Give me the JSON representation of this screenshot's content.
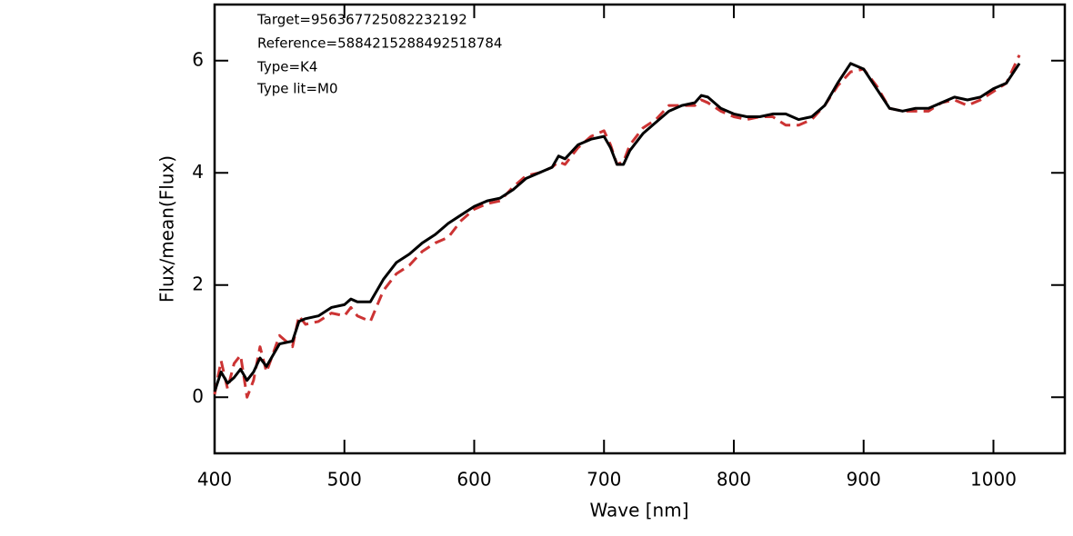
{
  "chart_data": {
    "type": "line",
    "x_label": "Wave [nm]",
    "y_label": "Flux/mean(Flux)",
    "annotations": [
      "Target=956367725082232192",
      "Reference=5884215288492518784",
      "Type=K4",
      "Type lit=M0"
    ],
    "xlim": [
      400,
      1055
    ],
    "ylim": [
      -1,
      7
    ],
    "xticks": [
      400,
      500,
      600,
      700,
      800,
      900,
      1000
    ],
    "yticks": [
      0,
      2,
      4,
      6
    ],
    "x": [
      400,
      405,
      410,
      415,
      420,
      425,
      430,
      435,
      440,
      450,
      460,
      465,
      470,
      480,
      490,
      500,
      505,
      510,
      520,
      530,
      540,
      550,
      560,
      570,
      580,
      590,
      600,
      610,
      620,
      630,
      640,
      650,
      660,
      665,
      670,
      680,
      690,
      700,
      705,
      710,
      715,
      720,
      730,
      740,
      750,
      760,
      770,
      775,
      780,
      790,
      800,
      810,
      820,
      830,
      840,
      850,
      860,
      870,
      880,
      890,
      900,
      910,
      920,
      930,
      940,
      950,
      960,
      970,
      980,
      990,
      1000,
      1010,
      1020
    ],
    "series": [
      {
        "color": "#000000",
        "dash": false,
        "values": [
          0.1,
          0.45,
          0.25,
          0.35,
          0.5,
          0.3,
          0.45,
          0.7,
          0.55,
          0.95,
          1.0,
          1.35,
          1.4,
          1.45,
          1.6,
          1.65,
          1.75,
          1.7,
          1.7,
          2.1,
          2.4,
          2.55,
          2.75,
          2.9,
          3.1,
          3.25,
          3.4,
          3.5,
          3.55,
          3.7,
          3.9,
          4.0,
          4.1,
          4.3,
          4.25,
          4.5,
          4.6,
          4.65,
          4.45,
          4.15,
          4.15,
          4.4,
          4.7,
          4.9,
          5.1,
          5.2,
          5.25,
          5.38,
          5.35,
          5.15,
          5.05,
          5.0,
          5.0,
          5.05,
          5.05,
          4.95,
          5.0,
          5.2,
          5.6,
          5.95,
          5.85,
          5.5,
          5.15,
          5.1,
          5.15,
          5.15,
          5.25,
          5.35,
          5.3,
          5.35,
          5.5,
          5.6,
          5.95
        ]
      },
      {
        "color": "#cc3333",
        "dash": true,
        "values": [
          0.05,
          0.65,
          0.15,
          0.6,
          0.75,
          0.0,
          0.3,
          0.9,
          0.45,
          1.1,
          0.9,
          1.45,
          1.3,
          1.35,
          1.5,
          1.45,
          1.6,
          1.45,
          1.35,
          1.9,
          2.2,
          2.35,
          2.6,
          2.75,
          2.85,
          3.15,
          3.35,
          3.45,
          3.5,
          3.75,
          3.95,
          4.0,
          4.1,
          4.2,
          4.15,
          4.45,
          4.65,
          4.75,
          4.5,
          4.15,
          4.2,
          4.5,
          4.8,
          4.95,
          5.2,
          5.2,
          5.2,
          5.3,
          5.25,
          5.1,
          5.0,
          4.95,
          5.0,
          5.0,
          4.85,
          4.85,
          4.95,
          5.2,
          5.55,
          5.8,
          5.85,
          5.55,
          5.15,
          5.1,
          5.1,
          5.1,
          5.25,
          5.3,
          5.2,
          5.3,
          5.45,
          5.6,
          6.1
        ]
      }
    ]
  }
}
